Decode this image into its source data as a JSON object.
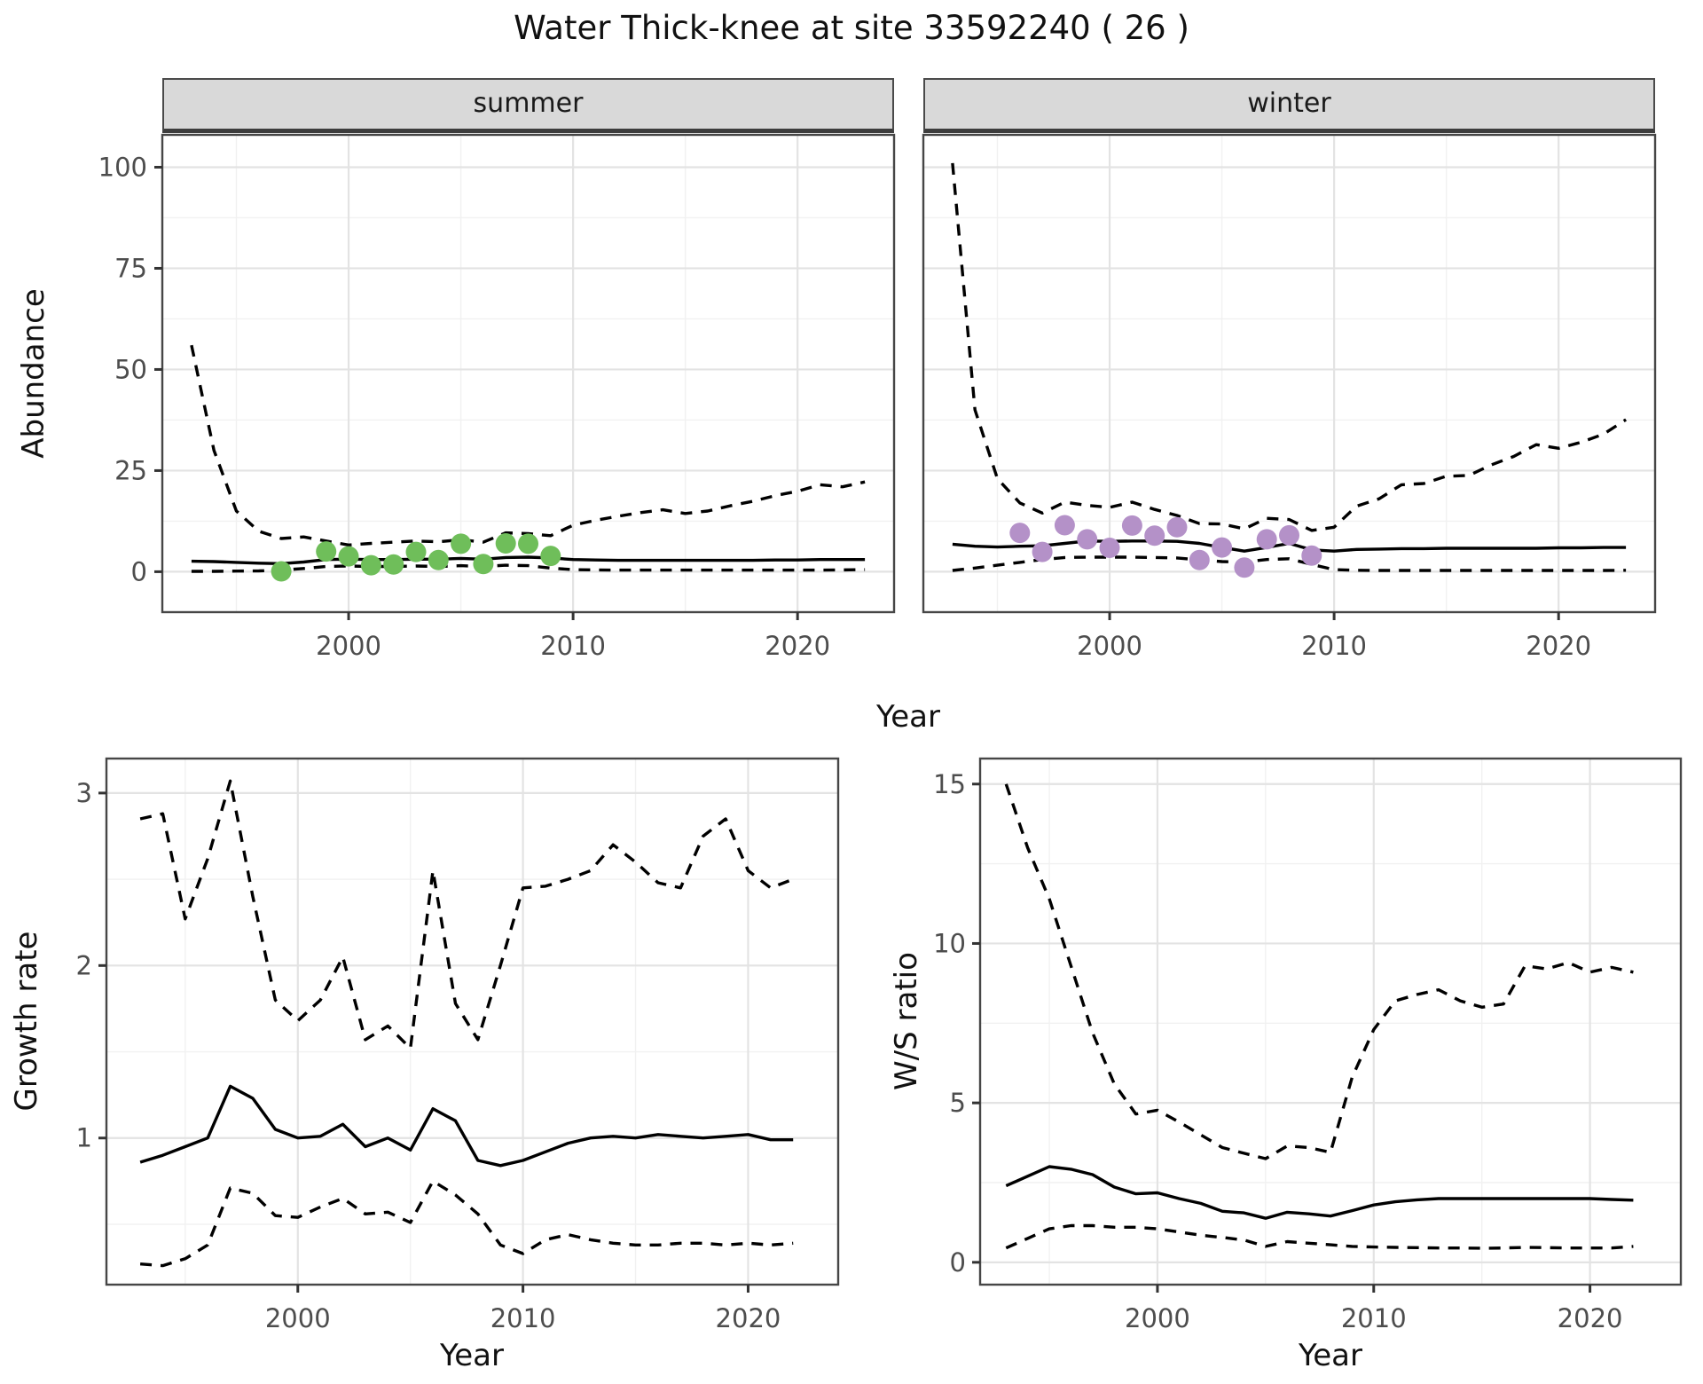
{
  "title": "Water Thick-knee at site 33592240 ( 26 )",
  "colors": {
    "summer_point": "#6FBE5A",
    "winter_point": "#B491C8",
    "line": "#000000",
    "grid_major": "#E3E3E3",
    "grid_minor": "#F1F1F1",
    "panel_border": "#464646",
    "strip_bg": "#D9D9D9",
    "axis_text": "#4D4D4D",
    "tick_mark": "#333333"
  },
  "chart_data": [
    {
      "id": "abundance_summer",
      "type": "line",
      "facet_label": "summer",
      "xlabel": "Year",
      "ylabel": "Abundance",
      "xlim": [
        1991.7,
        2024.3
      ],
      "ylim": [
        -10,
        108
      ],
      "x_ticks": [
        2000,
        2010,
        2020
      ],
      "y_ticks": [
        0,
        25,
        50,
        75,
        100
      ],
      "x_minor": [
        1995,
        2005,
        2015
      ],
      "y_minor": [
        12.5,
        37.5,
        62.5,
        87.5
      ],
      "grid": true,
      "legend": "none",
      "x": [
        1993,
        1994,
        1995,
        1996,
        1997,
        1998,
        1999,
        2000,
        2001,
        2002,
        2003,
        2004,
        2005,
        2006,
        2007,
        2008,
        2009,
        2010,
        2011,
        2012,
        2013,
        2014,
        2015,
        2016,
        2017,
        2018,
        2019,
        2020,
        2021,
        2022,
        2023
      ],
      "series": [
        {
          "name": "median",
          "style": "solid",
          "values": [
            2.6,
            2.5,
            2.3,
            2.1,
            2.0,
            2.4,
            3.0,
            3.1,
            3.0,
            3.0,
            3.1,
            3.1,
            3.3,
            3.1,
            3.5,
            3.6,
            3.4,
            3.0,
            2.9,
            2.8,
            2.8,
            2.8,
            2.8,
            2.8,
            2.8,
            2.8,
            2.9,
            2.9,
            3.0,
            3.0,
            3.0
          ]
        },
        {
          "name": "upper_95ci",
          "style": "dashed",
          "values": [
            56,
            30,
            15,
            10,
            8.2,
            8.6,
            7.6,
            6.6,
            7.0,
            7.3,
            7.6,
            7.4,
            7.9,
            7.3,
            9.6,
            9.4,
            8.9,
            11.5,
            12.7,
            13.7,
            14.6,
            15.3,
            14.4,
            15.0,
            16.3,
            17.4,
            18.8,
            19.9,
            21.5,
            21.0,
            22.2
          ]
        },
        {
          "name": "lower_95ci",
          "style": "dashed",
          "values": [
            0.1,
            0.1,
            0.15,
            0.2,
            0.4,
            0.8,
            1.3,
            1.4,
            1.3,
            1.3,
            1.4,
            1.3,
            1.5,
            1.3,
            1.6,
            1.5,
            0.9,
            0.5,
            0.45,
            0.4,
            0.4,
            0.4,
            0.4,
            0.4,
            0.4,
            0.4,
            0.4,
            0.4,
            0.4,
            0.45,
            0.5
          ]
        }
      ],
      "points": {
        "name": "observed_counts",
        "color_key": "summer_point",
        "x": [
          1997,
          1999,
          2000,
          2001,
          2002,
          2003,
          2004,
          2005,
          2006,
          2007,
          2008,
          2009
        ],
        "y": [
          0.1,
          5.0,
          3.8,
          1.6,
          1.8,
          4.9,
          2.9,
          6.9,
          1.9,
          7.0,
          6.9,
          3.9
        ]
      }
    },
    {
      "id": "abundance_winter",
      "type": "line",
      "facet_label": "winter",
      "xlabel": "Year",
      "ylabel": "Abundance",
      "xlim": [
        1991.7,
        2024.3
      ],
      "ylim": [
        -10,
        108
      ],
      "x_ticks": [
        2000,
        2010,
        2020
      ],
      "y_ticks": [
        0,
        25,
        50,
        75,
        100
      ],
      "x_minor": [
        1995,
        2005,
        2015
      ],
      "y_minor": [
        12.5,
        37.5,
        62.5,
        87.5
      ],
      "grid": true,
      "legend": "none",
      "x": [
        1993,
        1994,
        1995,
        1996,
        1997,
        1998,
        1999,
        2000,
        2001,
        2002,
        2003,
        2004,
        2005,
        2006,
        2007,
        2008,
        2009,
        2010,
        2011,
        2012,
        2013,
        2014,
        2015,
        2016,
        2017,
        2018,
        2019,
        2020,
        2021,
        2022,
        2023
      ],
      "series": [
        {
          "name": "median",
          "style": "solid",
          "values": [
            6.8,
            6.3,
            6.1,
            6.3,
            6.4,
            7.0,
            7.6,
            7.5,
            7.6,
            7.6,
            7.5,
            7.0,
            6.0,
            5.1,
            6.0,
            7.0,
            5.4,
            5.1,
            5.5,
            5.6,
            5.7,
            5.7,
            5.8,
            5.8,
            5.8,
            5.8,
            5.8,
            5.9,
            5.9,
            6.0,
            6.0
          ]
        },
        {
          "name": "upper_95ci",
          "style": "dashed",
          "values": [
            101,
            40,
            23,
            17,
            14.5,
            17.2,
            16.4,
            15.9,
            17.2,
            15.4,
            13.9,
            11.9,
            11.8,
            10.6,
            13.2,
            12.9,
            10.2,
            11.0,
            16.2,
            18.0,
            21.5,
            21.8,
            23.6,
            23.8,
            26.4,
            28.5,
            31.4,
            30.5,
            32.0,
            34.0,
            37.6
          ]
        },
        {
          "name": "lower_95ci",
          "style": "dashed",
          "values": [
            0.3,
            0.9,
            1.6,
            2.3,
            3.0,
            3.5,
            3.6,
            3.6,
            3.6,
            3.5,
            3.4,
            2.9,
            2.5,
            2.4,
            3.0,
            3.2,
            1.8,
            0.5,
            0.35,
            0.3,
            0.3,
            0.3,
            0.3,
            0.3,
            0.3,
            0.3,
            0.3,
            0.3,
            0.3,
            0.3,
            0.35
          ]
        }
      ],
      "points": {
        "name": "observed_counts",
        "color_key": "winter_point",
        "x": [
          1996,
          1997,
          1998,
          1999,
          2000,
          2001,
          2002,
          2003,
          2004,
          2005,
          2006,
          2007,
          2008,
          2009
        ],
        "y": [
          9.6,
          4.9,
          11.5,
          8.0,
          5.9,
          11.4,
          8.9,
          11.0,
          2.9,
          6.0,
          1.0,
          8.0,
          9.0,
          4.0
        ]
      }
    },
    {
      "id": "growth_rate",
      "type": "line",
      "facet_label": "",
      "xlabel": "Year",
      "ylabel": "Growth rate",
      "xlim": [
        1991.5,
        2024.0
      ],
      "ylim": [
        0.15,
        3.2
      ],
      "x_ticks": [
        2000,
        2010,
        2020
      ],
      "y_ticks": [
        1,
        2,
        3
      ],
      "x_minor": [
        1995,
        2005,
        2015
      ],
      "y_minor": [
        0.5,
        1.5,
        2.5
      ],
      "grid": true,
      "legend": "none",
      "x": [
        1993,
        1994,
        1995,
        1996,
        1997,
        1998,
        1999,
        2000,
        2001,
        2002,
        2003,
        2004,
        2005,
        2006,
        2007,
        2008,
        2009,
        2010,
        2011,
        2012,
        2013,
        2014,
        2015,
        2016,
        2017,
        2018,
        2019,
        2020,
        2021,
        2022
      ],
      "series": [
        {
          "name": "median",
          "style": "solid",
          "values": [
            0.86,
            0.9,
            0.95,
            1.0,
            1.3,
            1.23,
            1.05,
            1.0,
            1.01,
            1.08,
            0.95,
            1.0,
            0.93,
            1.17,
            1.1,
            0.87,
            0.84,
            0.87,
            0.92,
            0.97,
            1.0,
            1.01,
            1.0,
            1.02,
            1.01,
            1.0,
            1.01,
            1.02,
            0.99,
            0.99
          ]
        },
        {
          "name": "upper_95ci",
          "style": "dashed",
          "values": [
            2.85,
            2.88,
            2.27,
            2.62,
            3.07,
            2.4,
            1.8,
            1.68,
            1.8,
            2.05,
            1.57,
            1.65,
            1.52,
            2.55,
            1.78,
            1.57,
            2.0,
            2.45,
            2.46,
            2.5,
            2.55,
            2.7,
            2.6,
            2.48,
            2.45,
            2.75,
            2.85,
            2.55,
            2.45,
            2.5
          ]
        },
        {
          "name": "lower_95ci",
          "style": "dashed",
          "values": [
            0.27,
            0.26,
            0.3,
            0.38,
            0.71,
            0.68,
            0.55,
            0.54,
            0.6,
            0.65,
            0.56,
            0.57,
            0.51,
            0.75,
            0.67,
            0.56,
            0.38,
            0.33,
            0.41,
            0.44,
            0.41,
            0.39,
            0.38,
            0.38,
            0.39,
            0.39,
            0.38,
            0.39,
            0.38,
            0.39
          ]
        }
      ]
    },
    {
      "id": "ws_ratio",
      "type": "line",
      "facet_label": "",
      "xlabel": "Year",
      "ylabel": "W/S ratio",
      "xlim": [
        1991.8,
        2024.2
      ],
      "ylim": [
        -0.7,
        15.8
      ],
      "x_ticks": [
        2000,
        2010,
        2020
      ],
      "y_ticks": [
        0,
        5,
        10,
        15
      ],
      "x_minor": [
        1995,
        2005,
        2015
      ],
      "y_minor": [
        2.5,
        7.5,
        12.5
      ],
      "grid": true,
      "legend": "none",
      "x": [
        1993,
        1994,
        1995,
        1996,
        1997,
        1998,
        1999,
        2000,
        2001,
        2002,
        2003,
        2004,
        2005,
        2006,
        2007,
        2008,
        2009,
        2010,
        2011,
        2012,
        2013,
        2014,
        2015,
        2016,
        2017,
        2018,
        2019,
        2020,
        2021,
        2022
      ],
      "series": [
        {
          "name": "median",
          "style": "solid",
          "values": [
            2.4,
            2.7,
            3.0,
            2.92,
            2.75,
            2.36,
            2.15,
            2.18,
            2.0,
            1.85,
            1.6,
            1.55,
            1.38,
            1.57,
            1.52,
            1.45,
            1.62,
            1.8,
            1.9,
            1.96,
            2.0,
            2.0,
            2.0,
            2.0,
            2.0,
            2.0,
            2.0,
            2.0,
            1.97,
            1.95
          ]
        },
        {
          "name": "upper_95ci",
          "style": "dashed",
          "values": [
            15.0,
            13.0,
            11.4,
            9.3,
            7.2,
            5.6,
            4.65,
            4.77,
            4.4,
            4.0,
            3.6,
            3.42,
            3.25,
            3.65,
            3.6,
            3.45,
            5.8,
            7.3,
            8.2,
            8.4,
            8.55,
            8.2,
            8.0,
            8.1,
            9.3,
            9.2,
            9.4,
            9.1,
            9.25,
            9.1
          ]
        },
        {
          "name": "lower_95ci",
          "style": "dashed",
          "values": [
            0.45,
            0.75,
            1.05,
            1.15,
            1.15,
            1.1,
            1.1,
            1.05,
            0.95,
            0.85,
            0.78,
            0.7,
            0.5,
            0.65,
            0.6,
            0.55,
            0.5,
            0.48,
            0.47,
            0.46,
            0.45,
            0.45,
            0.44,
            0.45,
            0.47,
            0.46,
            0.45,
            0.45,
            0.45,
            0.5
          ]
        }
      ]
    }
  ]
}
